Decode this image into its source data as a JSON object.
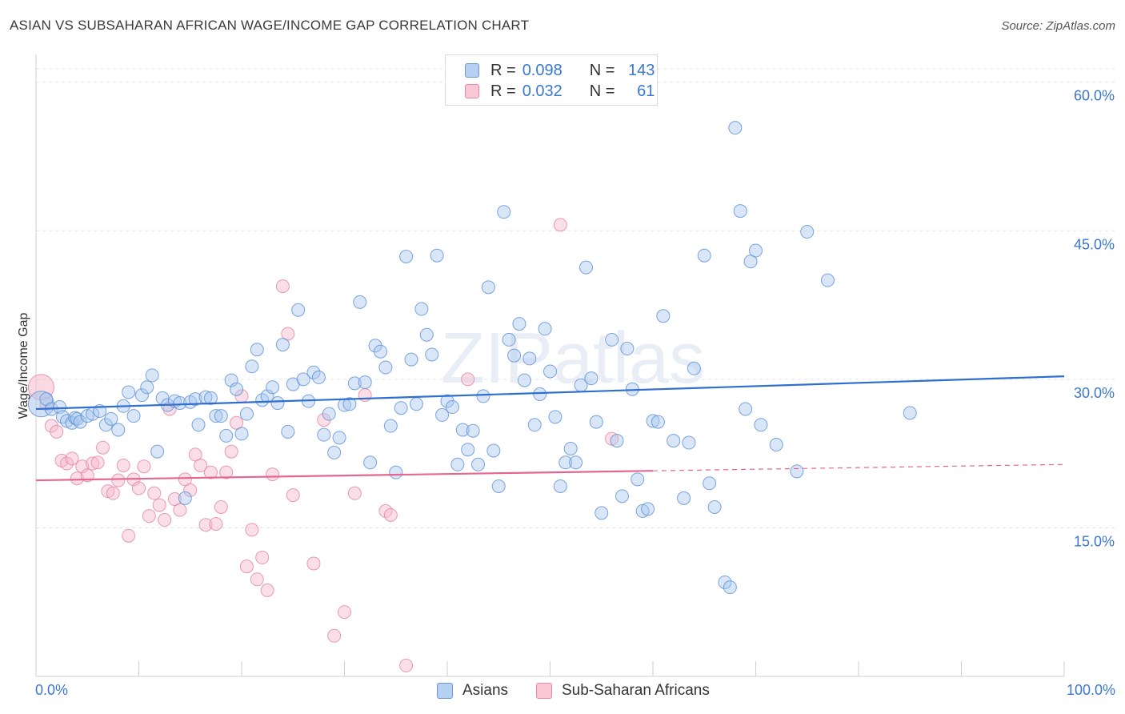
{
  "title": "ASIAN VS SUBSAHARAN AFRICAN WAGE/INCOME GAP CORRELATION CHART",
  "source": "Source: ZipAtlas.com",
  "watermark": "ZIPatlas",
  "legend_stats": [
    {
      "r_label": "R =",
      "r_value": "0.098",
      "n_label": "N =",
      "n_value": "143"
    },
    {
      "r_label": "R =",
      "r_value": "0.032",
      "n_label": "N =",
      "n_value": "61"
    }
  ],
  "chart_data": {
    "type": "scatter",
    "title": "ASIAN VS SUBSAHARAN AFRICAN WAGE/INCOME GAP CORRELATION CHART",
    "xlabel": "",
    "ylabel": "Wage/Income Gap",
    "xlim": [
      0,
      100
    ],
    "ylim": [
      0,
      62
    ],
    "x_tick_labels": [
      "0.0%",
      "100.0%"
    ],
    "y_ticks": [
      15,
      30,
      45,
      60
    ],
    "y_tick_labels": [
      "15.0%",
      "30.0%",
      "45.0%",
      "60.0%"
    ],
    "grid": true,
    "legend_position": "top-center and bottom",
    "colors": {
      "asians_fill": "#a9c8ef",
      "asians_stroke": "#5b8fd6",
      "asians_line": "#2f6fd0",
      "ssa_fill": "#f6b9cb",
      "ssa_stroke": "#e3829f",
      "ssa_line": "#e5668f",
      "axis_label": "#3a78cf",
      "grid": "#e3e3e3"
    },
    "series": [
      {
        "name": "Asians",
        "r": 0.098,
        "n": 143,
        "trend": {
          "x": [
            0,
            100
          ],
          "y": [
            27.0,
            30.3
          ],
          "dashed_from": null
        },
        "points": [
          [
            0.5,
            27.5
          ],
          [
            1,
            28
          ],
          [
            1.5,
            27
          ],
          [
            2.3,
            27.2
          ],
          [
            2.6,
            26.2
          ],
          [
            3,
            25.8
          ],
          [
            3.5,
            25.6
          ],
          [
            3.8,
            26.1
          ],
          [
            4,
            26
          ],
          [
            4.3,
            25.7
          ],
          [
            5,
            26.3
          ],
          [
            5.5,
            26.5
          ],
          [
            6.2,
            26.8
          ],
          [
            6.8,
            25.4
          ],
          [
            7.3,
            26
          ],
          [
            8,
            24.9
          ],
          [
            8.5,
            27.3
          ],
          [
            9,
            28.7
          ],
          [
            9.5,
            26.3
          ],
          [
            10.3,
            28.4
          ],
          [
            10.8,
            29.2
          ],
          [
            11.3,
            30.4
          ],
          [
            11.8,
            22.7
          ],
          [
            12.3,
            28.1
          ],
          [
            12.8,
            27.4
          ],
          [
            13.5,
            27.8
          ],
          [
            14,
            27.6
          ],
          [
            14.5,
            18
          ],
          [
            15,
            27.7
          ],
          [
            15.5,
            28
          ],
          [
            15.8,
            25.4
          ],
          [
            16.5,
            28.2
          ],
          [
            17,
            28.1
          ],
          [
            17.5,
            26.3
          ],
          [
            18,
            26.3
          ],
          [
            18.5,
            24.3
          ],
          [
            19,
            29.9
          ],
          [
            19.5,
            29
          ],
          [
            20,
            24.5
          ],
          [
            20.5,
            26.5
          ],
          [
            21,
            31.3
          ],
          [
            21.5,
            33
          ],
          [
            22,
            27.9
          ],
          [
            22.5,
            28.3
          ],
          [
            23,
            29.2
          ],
          [
            23.5,
            27.6
          ],
          [
            24,
            33.5
          ],
          [
            24.5,
            24.7
          ],
          [
            25,
            29.5
          ],
          [
            25.5,
            37
          ],
          [
            26,
            30
          ],
          [
            26.5,
            27.8
          ],
          [
            27,
            30.7
          ],
          [
            27.5,
            30.2
          ],
          [
            28,
            24.4
          ],
          [
            28.5,
            26.5
          ],
          [
            29,
            22.6
          ],
          [
            29.5,
            24.1
          ],
          [
            30,
            27.4
          ],
          [
            30.5,
            27.5
          ],
          [
            31,
            29.6
          ],
          [
            31.5,
            37.8
          ],
          [
            32,
            29.7
          ],
          [
            32.5,
            21.6
          ],
          [
            33,
            33.4
          ],
          [
            33.5,
            32.8
          ],
          [
            34,
            31.2
          ],
          [
            34.5,
            25.3
          ],
          [
            35,
            20.6
          ],
          [
            35.5,
            27.1
          ],
          [
            36,
            42.4
          ],
          [
            36.5,
            32
          ],
          [
            37,
            27.5
          ],
          [
            37.5,
            37.1
          ],
          [
            38,
            34.5
          ],
          [
            38.5,
            32.5
          ],
          [
            39,
            42.5
          ],
          [
            39.5,
            26.4
          ],
          [
            40,
            27.8
          ],
          [
            40.5,
            27.2
          ],
          [
            41,
            21.4
          ],
          [
            41.5,
            24.9
          ],
          [
            42,
            22.9
          ],
          [
            42.5,
            24.8
          ],
          [
            43,
            21.4
          ],
          [
            43.5,
            28.3
          ],
          [
            44,
            39.3
          ],
          [
            44.5,
            22.8
          ],
          [
            45,
            19.2
          ],
          [
            45.5,
            46.9
          ],
          [
            46,
            34
          ],
          [
            46.5,
            32.4
          ],
          [
            47,
            35.6
          ],
          [
            47.5,
            29.9
          ],
          [
            48,
            32.1
          ],
          [
            48.5,
            25.4
          ],
          [
            49,
            28.5
          ],
          [
            49.5,
            35.1
          ],
          [
            50,
            30.8
          ],
          [
            50.5,
            26.2
          ],
          [
            51,
            19.2
          ],
          [
            51.5,
            21.6
          ],
          [
            52,
            23
          ],
          [
            52.5,
            21.6
          ],
          [
            53,
            29.4
          ],
          [
            53.5,
            41.3
          ],
          [
            54,
            30.1
          ],
          [
            54.5,
            25.7
          ],
          [
            55,
            16.5
          ],
          [
            56,
            34
          ],
          [
            56.5,
            23.8
          ],
          [
            57,
            18.2
          ],
          [
            57.5,
            33.1
          ],
          [
            58,
            29
          ],
          [
            58.5,
            19.9
          ],
          [
            59,
            16.7
          ],
          [
            59.5,
            16.9
          ],
          [
            60,
            25.8
          ],
          [
            60.5,
            25.7
          ],
          [
            61,
            36.4
          ],
          [
            62,
            23.8
          ],
          [
            63,
            18
          ],
          [
            63.5,
            23.6
          ],
          [
            64,
            31.1
          ],
          [
            65,
            42.5
          ],
          [
            65.5,
            19.5
          ],
          [
            66,
            17.1
          ],
          [
            67,
            9.5
          ],
          [
            67.5,
            9
          ],
          [
            68,
            55.4
          ],
          [
            68.5,
            47
          ],
          [
            69,
            27
          ],
          [
            69.5,
            41.9
          ],
          [
            70,
            43
          ],
          [
            70.5,
            25.4
          ],
          [
            72,
            23.4
          ],
          [
            74,
            20.7
          ],
          [
            75,
            44.9
          ],
          [
            77,
            40
          ],
          [
            85,
            26.6
          ]
        ]
      },
      {
        "name": "Sub-Saharan Africans",
        "r": 0.032,
        "n": 61,
        "trend": {
          "x": [
            0,
            100
          ],
          "y": [
            19.8,
            21.4
          ],
          "dashed_from": 60
        },
        "points": [
          [
            0.5,
            29.2
          ],
          [
            1,
            27.5
          ],
          [
            1.5,
            25.3
          ],
          [
            2,
            24.7
          ],
          [
            2.5,
            21.8
          ],
          [
            3,
            21.5
          ],
          [
            3.5,
            22
          ],
          [
            4,
            20
          ],
          [
            4.5,
            21.2
          ],
          [
            5,
            20.3
          ],
          [
            5.5,
            21.5
          ],
          [
            6,
            21.6
          ],
          [
            6.5,
            23.1
          ],
          [
            7,
            18.7
          ],
          [
            7.5,
            18.5
          ],
          [
            8,
            19.8
          ],
          [
            8.5,
            21.3
          ],
          [
            9,
            14.2
          ],
          [
            9.5,
            19.9
          ],
          [
            10,
            19
          ],
          [
            10.5,
            21.2
          ],
          [
            11,
            16.2
          ],
          [
            11.5,
            18.5
          ],
          [
            12,
            17.3
          ],
          [
            12.5,
            15.8
          ],
          [
            13,
            27
          ],
          [
            13.5,
            17.9
          ],
          [
            14,
            16.8
          ],
          [
            14.5,
            19.9
          ],
          [
            15,
            18.8
          ],
          [
            15.5,
            22.4
          ],
          [
            16,
            21.3
          ],
          [
            16.5,
            15.3
          ],
          [
            17,
            20.6
          ],
          [
            17.5,
            15.4
          ],
          [
            18,
            17.1
          ],
          [
            18.5,
            20.6
          ],
          [
            19,
            22.7
          ],
          [
            19.5,
            25.6
          ],
          [
            20,
            28.3
          ],
          [
            20.5,
            11.1
          ],
          [
            21,
            14.8
          ],
          [
            21.5,
            9.8
          ],
          [
            22,
            12
          ],
          [
            22.5,
            8.7
          ],
          [
            23,
            20.4
          ],
          [
            24,
            39.4
          ],
          [
            24.5,
            34.6
          ],
          [
            25,
            18.3
          ],
          [
            27,
            11.4
          ],
          [
            28,
            25.9
          ],
          [
            29,
            4.1
          ],
          [
            30,
            6.5
          ],
          [
            31,
            18.5
          ],
          [
            32,
            28.4
          ],
          [
            34,
            16.7
          ],
          [
            34.5,
            16.3
          ],
          [
            36,
            1.1
          ],
          [
            42,
            30
          ],
          [
            51,
            45.6
          ],
          [
            56,
            24
          ]
        ]
      }
    ]
  }
}
